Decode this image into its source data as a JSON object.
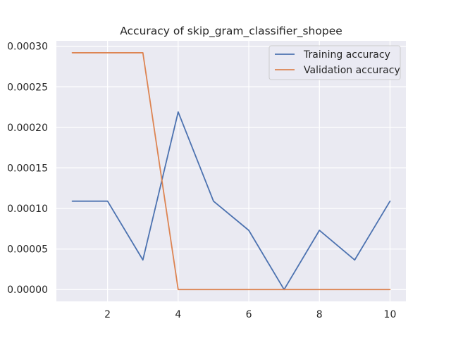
{
  "chart_data": {
    "type": "line",
    "title": "Accuracy of skip_gram_classifier_shopee",
    "xlabel": "",
    "ylabel": "",
    "x": [
      1,
      2,
      3,
      4,
      5,
      6,
      7,
      8,
      9,
      10
    ],
    "xlim": [
      0.55,
      10.45
    ],
    "ylim": [
      -1.46e-05,
      0.0003067
    ],
    "xticks": [
      2,
      4,
      6,
      8,
      10
    ],
    "xtick_labels": [
      "2",
      "4",
      "6",
      "8",
      "10"
    ],
    "yticks": [
      0,
      5e-05,
      0.0001,
      0.00015,
      0.0002,
      0.00025,
      0.0003
    ],
    "ytick_labels": [
      "0.00000",
      "0.00005",
      "0.00010",
      "0.00015",
      "0.00020",
      "0.00025",
      "0.00030"
    ],
    "grid": true,
    "legend_position": "top-right",
    "series": [
      {
        "name": "Training accuracy",
        "color": "#4c72b0",
        "values": [
          0.000109,
          0.000109,
          3.65e-05,
          0.000219,
          0.000109,
          7.3e-05,
          0.0,
          7.3e-05,
          3.65e-05,
          0.000109
        ]
      },
      {
        "name": "Validation accuracy",
        "color": "#dd8452",
        "values": [
          0.000292,
          0.000292,
          0.000292,
          0.0,
          0.0,
          0.0,
          0.0,
          0.0,
          0.0,
          0.0
        ]
      }
    ]
  }
}
